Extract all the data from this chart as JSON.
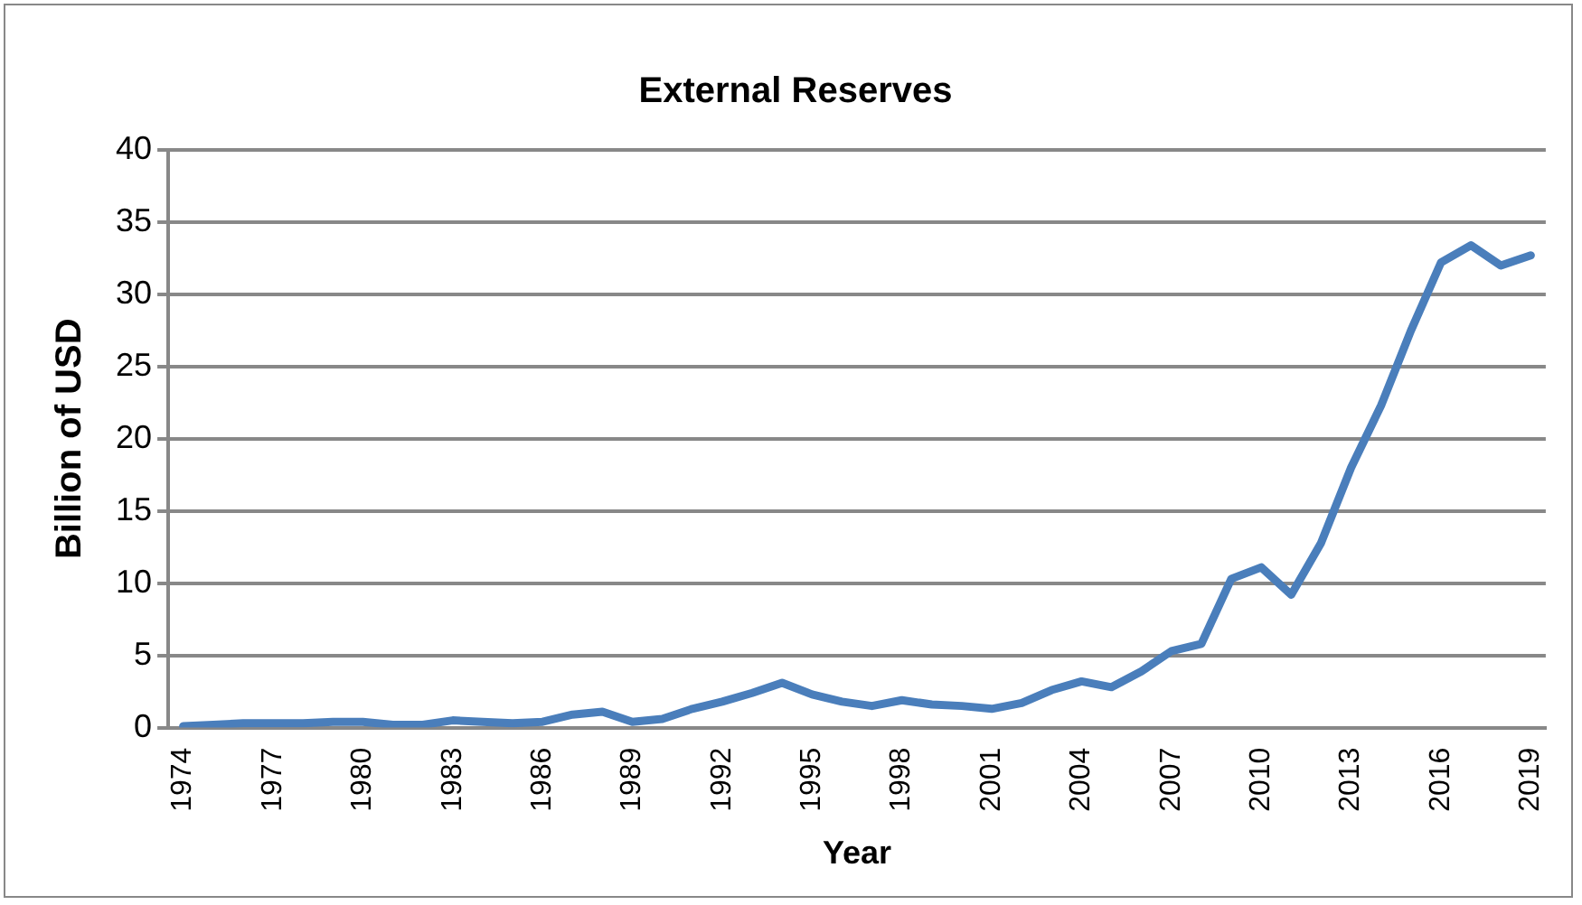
{
  "chart_data": {
    "type": "line",
    "title": "External Reserves",
    "xlabel": "Year",
    "ylabel": "Billion of USD",
    "categories": [
      "1974",
      null,
      null,
      "1977",
      null,
      null,
      "1980",
      null,
      null,
      "1983",
      null,
      null,
      "1986",
      null,
      null,
      "1989",
      null,
      null,
      "1992",
      null,
      null,
      "1995",
      null,
      null,
      "1998",
      null,
      null,
      "2001",
      null,
      null,
      "2004",
      null,
      null,
      "2007",
      null,
      null,
      "2010",
      null,
      null,
      "2013",
      null,
      null,
      "2016",
      null,
      null,
      "2019"
    ],
    "series": [
      {
        "color": "#4a7ebb",
        "values": [
          0.1,
          0.2,
          0.3,
          0.3,
          0.3,
          0.4,
          0.4,
          0.2,
          0.2,
          0.5,
          0.4,
          0.3,
          0.4,
          0.9,
          1.1,
          0.4,
          0.6,
          1.3,
          1.8,
          2.4,
          3.1,
          2.3,
          1.8,
          1.5,
          1.9,
          1.6,
          1.5,
          1.3,
          1.7,
          2.6,
          3.2,
          2.8,
          3.9,
          5.3,
          5.8,
          10.3,
          11.1,
          9.2,
          12.8,
          18,
          22.3,
          27.5,
          32.2,
          33.4,
          32.0,
          32.7
        ]
      }
    ],
    "ylim": [
      0,
      40
    ],
    "yticks": [
      0,
      5,
      10,
      15,
      20,
      25,
      30,
      35,
      40
    ],
    "grid": "y",
    "legend": false,
    "marker": "none",
    "line_style": "solid"
  }
}
